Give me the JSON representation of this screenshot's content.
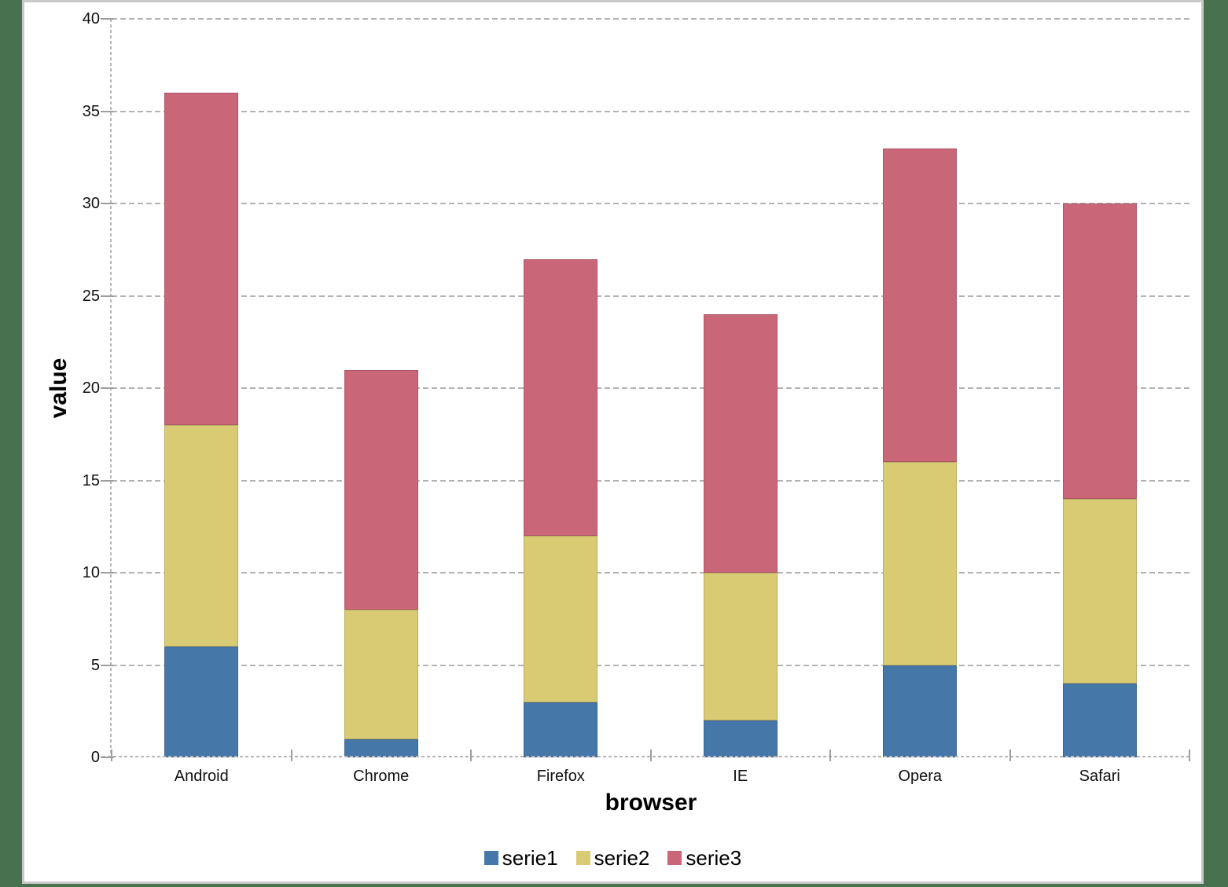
{
  "page": {
    "background_color": "#48724F",
    "panel_background": "#FFFFFF",
    "panel_border_color": "#C9C9C9"
  },
  "chart_data": {
    "type": "bar",
    "stacked": true,
    "xlabel": "browser",
    "ylabel": "value",
    "categories": [
      "Android",
      "Chrome",
      "Firefox",
      "IE",
      "Opera",
      "Safari"
    ],
    "series": [
      {
        "name": "serie1",
        "color": "#4677A9",
        "values": [
          6,
          1,
          3,
          2,
          5,
          4
        ]
      },
      {
        "name": "serie2",
        "color": "#D9CA74",
        "values": [
          12,
          7,
          9,
          8,
          11,
          10
        ]
      },
      {
        "name": "serie3",
        "color": "#C96677",
        "values": [
          18,
          13,
          15,
          14,
          17,
          16
        ]
      }
    ],
    "stack_totals": [
      36,
      21,
      27,
      24,
      33,
      30
    ],
    "ylim": [
      0,
      40
    ],
    "ytick_step": 5,
    "ytick_labels": [
      "0",
      "5",
      "10",
      "15",
      "20",
      "25",
      "30",
      "35",
      "40"
    ],
    "grid": "horizontal-dashed",
    "gridline_color": "#B3B3B3",
    "axis_line_color": "#B5B5B5",
    "tick_color": "#9E9E9E",
    "label_color": "#111111",
    "legend_position": "bottom"
  }
}
